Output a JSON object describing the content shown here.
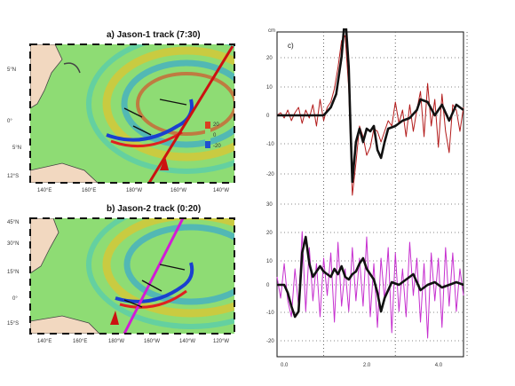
{
  "panel_a": {
    "title": "a) Jason-1 track (7:30)",
    "lat_ticks": [
      "5°N",
      "0°",
      "5°N",
      "12°S"
    ],
    "lon_ticks": [
      "140°E",
      "160°E",
      "180°W",
      "160°W",
      "140°W"
    ],
    "colorbar_ticks": [
      "20",
      "0",
      "-20"
    ]
  },
  "panel_b": {
    "title": "b) Jason-2 track (0:20)",
    "lat_ticks": [
      "45°N",
      "30°N",
      "15°N",
      "0°",
      "15°S"
    ],
    "lon_ticks": [
      "140°E",
      "160°E",
      "180°W",
      "160°W",
      "140°W",
      "120°W"
    ]
  },
  "panel_c": {
    "label": "c)",
    "y_unit": "cm"
  },
  "colors": {
    "ocean": "#8edc74",
    "land": "#f2d8c0",
    "track_red": "#cc1111",
    "track_magenta": "#d21bd6",
    "obs_black": "#111111",
    "model_red": "#b31b1b",
    "model_magenta": "#c62fcf"
  },
  "chart_data": {
    "type": "line",
    "xlabel": "",
    "ylabel": "cm",
    "x_ticks": [
      "0.0",
      "2.0",
      "4.0"
    ],
    "y_ticks": [
      "20",
      "10",
      "0",
      "-10",
      "-20",
      "30",
      "20",
      "10",
      "0",
      "-10",
      "-20"
    ],
    "xlim": [
      0,
      5.2
    ],
    "series": [
      {
        "group": "upper",
        "color": "#111111",
        "x": [
          0,
          1.3,
          1.5,
          1.65,
          1.8,
          1.9,
          2.0,
          2.05,
          2.1,
          2.2,
          2.3,
          2.4,
          2.5,
          2.6,
          2.7,
          2.8,
          2.9,
          3.0,
          3.1,
          3.3,
          3.5,
          3.7,
          3.9,
          4.0,
          4.2,
          4.4,
          4.6,
          4.8,
          5.0,
          5.2
        ],
        "y": [
          0,
          0,
          3,
          8,
          22,
          38,
          18,
          -5,
          -25,
          -10,
          -5,
          -10,
          -5,
          -6,
          -4,
          -13,
          -16,
          -10,
          -5,
          -4,
          -2,
          -1,
          2,
          6,
          5,
          0,
          4,
          -2,
          4,
          2
        ]
      },
      {
        "group": "upper",
        "color": "#b31b1b",
        "x": [
          0,
          0.1,
          0.2,
          0.3,
          0.4,
          0.5,
          0.6,
          0.7,
          0.8,
          0.9,
          1.0,
          1.1,
          1.2,
          1.3,
          1.4,
          1.5,
          1.6,
          1.7,
          1.8,
          1.9,
          2.0,
          2.1,
          2.2,
          2.3,
          2.4,
          2.5,
          2.6,
          2.7,
          2.8,
          2.9,
          3.0,
          3.1,
          3.2,
          3.3,
          3.4,
          3.5,
          3.6,
          3.7,
          3.8,
          3.9,
          4.0,
          4.1,
          4.2,
          4.3,
          4.4,
          4.5,
          4.6,
          4.7,
          4.8,
          4.9,
          5.0,
          5.1,
          5.2
        ],
        "y": [
          0,
          1,
          -1,
          2,
          -2,
          1,
          3,
          -3,
          2,
          -1,
          4,
          -4,
          6,
          -2,
          3,
          5,
          10,
          18,
          28,
          30,
          10,
          -30,
          -18,
          -4,
          -8,
          -15,
          -12,
          -5,
          -6,
          -10,
          -6,
          -2,
          -4,
          5,
          -3,
          2,
          -8,
          4,
          -6,
          2,
          9,
          -8,
          12,
          -4,
          6,
          -12,
          8,
          -6,
          -14,
          4,
          2,
          -6,
          3
        ]
      },
      {
        "group": "lower",
        "color": "#111111",
        "x": [
          0,
          0.2,
          0.3,
          0.4,
          0.5,
          0.6,
          0.7,
          0.8,
          0.9,
          1.0,
          1.1,
          1.2,
          1.3,
          1.4,
          1.5,
          1.6,
          1.7,
          1.8,
          1.9,
          2.0,
          2.1,
          2.2,
          2.3,
          2.4,
          2.5,
          2.6,
          2.7,
          2.8,
          2.9,
          3.0,
          3.2,
          3.4,
          3.6,
          3.8,
          4.0,
          4.2,
          4.4,
          4.6,
          4.8,
          5.0,
          5.2
        ],
        "y": [
          0,
          0,
          -3,
          -8,
          -12,
          -10,
          12,
          18,
          8,
          3,
          5,
          7,
          5,
          4,
          3,
          6,
          4,
          7,
          3,
          2,
          4,
          5,
          8,
          10,
          6,
          4,
          2,
          -3,
          -10,
          -5,
          1,
          0,
          2,
          4,
          -2,
          0,
          1,
          -1,
          0,
          1,
          0
        ]
      },
      {
        "group": "lower",
        "color": "#c62fcf",
        "x": [
          0,
          0.1,
          0.2,
          0.3,
          0.4,
          0.5,
          0.6,
          0.7,
          0.8,
          0.9,
          1.0,
          1.1,
          1.2,
          1.3,
          1.4,
          1.5,
          1.6,
          1.7,
          1.8,
          1.9,
          2.0,
          2.1,
          2.2,
          2.3,
          2.4,
          2.5,
          2.6,
          2.7,
          2.8,
          2.9,
          3.0,
          3.1,
          3.2,
          3.3,
          3.4,
          3.5,
          3.6,
          3.7,
          3.8,
          3.9,
          4.0,
          4.1,
          4.2,
          4.3,
          4.4,
          4.5,
          4.6,
          4.7,
          4.8,
          4.9,
          5.0,
          5.1,
          5.2
        ],
        "y": [
          3,
          -5,
          8,
          -6,
          -12,
          6,
          -8,
          20,
          -10,
          14,
          -6,
          8,
          -12,
          10,
          -4,
          12,
          -14,
          16,
          -8,
          6,
          -10,
          14,
          -6,
          10,
          -8,
          18,
          -12,
          8,
          -16,
          10,
          -6,
          14,
          -18,
          12,
          -10,
          6,
          -12,
          16,
          -4,
          10,
          -14,
          8,
          -20,
          12,
          -6,
          10,
          -16,
          14,
          -8,
          12,
          -10,
          6,
          -4
        ]
      }
    ]
  }
}
